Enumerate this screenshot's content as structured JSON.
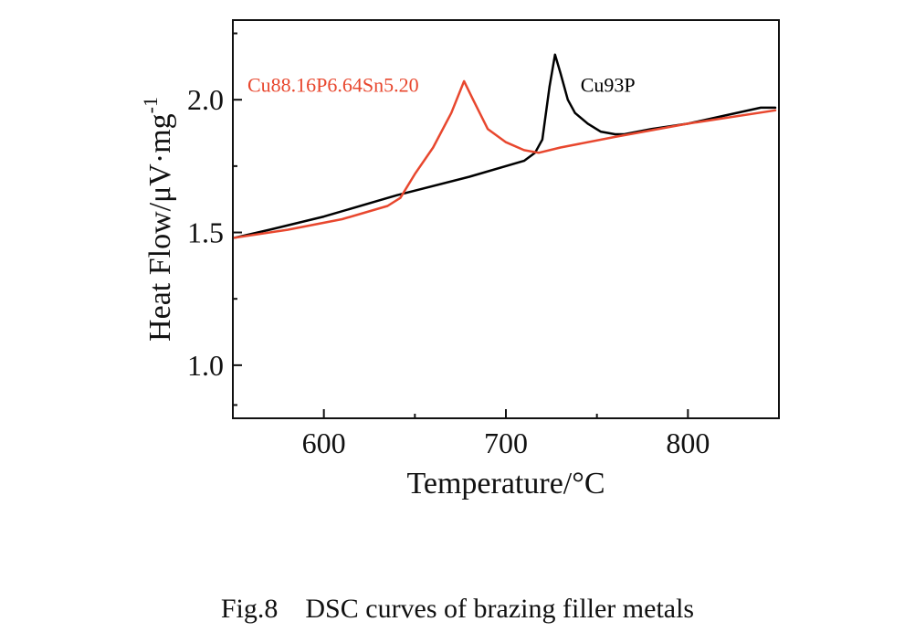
{
  "chart_data": {
    "type": "line",
    "title": "",
    "xlabel": "Temperature/°C",
    "ylabel_main": "Heat Flow/μV·mg",
    "ylabel_sup": "-1",
    "xlim": [
      550,
      850
    ],
    "ylim": [
      0.8,
      2.3
    ],
    "xticks": [
      600,
      700,
      800
    ],
    "xtick_labels": [
      "600",
      "700",
      "800"
    ],
    "yticks": [
      1.0,
      1.5,
      2.0
    ],
    "ytick_labels": [
      "1.0",
      "1.5",
      "2.0"
    ],
    "grid": false,
    "series": [
      {
        "name": "Cu93P",
        "color": "#000000",
        "x": [
          551,
          570,
          600,
          640,
          680,
          710,
          716,
          720,
          724,
          727,
          730,
          734,
          738,
          745,
          752,
          760,
          765,
          780,
          800,
          820,
          840,
          848
        ],
        "y": [
          1.48,
          1.51,
          1.56,
          1.64,
          1.71,
          1.77,
          1.8,
          1.85,
          2.05,
          2.17,
          2.1,
          2.0,
          1.95,
          1.91,
          1.88,
          1.87,
          1.87,
          1.89,
          1.91,
          1.94,
          1.97,
          1.97
        ]
      },
      {
        "name": "Cu88.16P6.64Sn5.20",
        "color": "#e8472e",
        "x": [
          551,
          580,
          610,
          635,
          642,
          650,
          660,
          670,
          677,
          682,
          690,
          700,
          710,
          718,
          730,
          760,
          800,
          848
        ],
        "y": [
          1.48,
          1.51,
          1.55,
          1.6,
          1.63,
          1.72,
          1.82,
          1.95,
          2.07,
          2.0,
          1.89,
          1.84,
          1.81,
          1.8,
          1.82,
          1.86,
          1.91,
          1.96
        ]
      }
    ]
  },
  "caption": "Fig.8    DSC curves of brazing filler metals"
}
